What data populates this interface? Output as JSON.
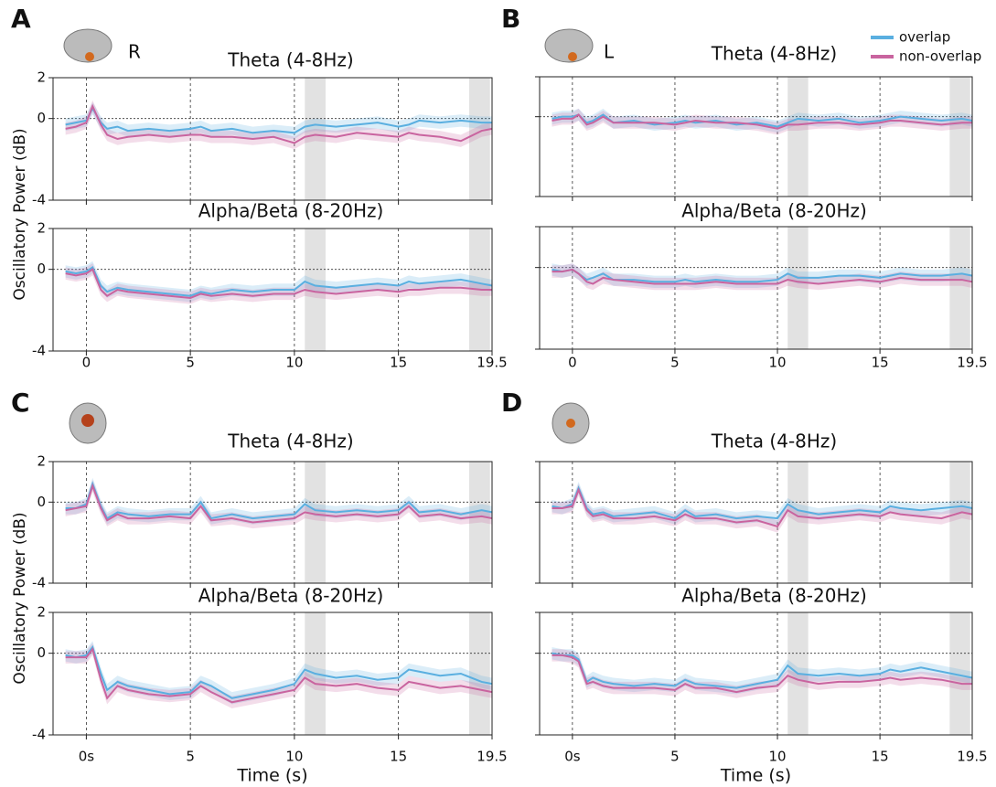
{
  "chart_data": [
    {
      "type": "line",
      "letter": "A",
      "side_label": "R",
      "ylabel": "Oscillatory Power (dB)",
      "x": [
        -1,
        -0.5,
        0,
        0.3,
        0.7,
        1,
        1.5,
        2,
        3,
        4,
        5,
        5.5,
        6,
        7,
        8,
        9,
        10,
        10.5,
        11,
        12,
        13,
        14,
        15,
        15.5,
        16,
        17,
        18,
        19,
        19.5
      ],
      "xlim": [
        -1.6,
        19.5
      ],
      "xticks": [
        0,
        5,
        10,
        15,
        19.5
      ],
      "ylim": [
        -4,
        2
      ],
      "yticks": [
        -4,
        0,
        2
      ],
      "ytick_labels": true,
      "vlines": [
        0,
        5,
        10,
        15
      ],
      "hline": 0,
      "shaded": [
        [
          10.5,
          11.5
        ],
        [
          18.4,
          19.4
        ]
      ],
      "subplots": [
        {
          "title": "Theta (4-8Hz)",
          "series": [
            {
              "error": 0.3,
              "values": [
                -0.3,
                -0.2,
                -0.1,
                0.5,
                -0.2,
                -0.5,
                -0.4,
                -0.6,
                -0.5,
                -0.6,
                -0.5,
                -0.4,
                -0.6,
                -0.5,
                -0.7,
                -0.6,
                -0.7,
                -0.4,
                -0.3,
                -0.4,
                -0.3,
                -0.2,
                -0.4,
                -0.3,
                -0.1,
                -0.2,
                -0.1,
                -0.2,
                -0.2
              ]
            },
            {
              "error": 0.3,
              "values": [
                -0.5,
                -0.4,
                -0.2,
                0.6,
                -0.3,
                -0.8,
                -1.0,
                -0.9,
                -0.8,
                -0.9,
                -0.8,
                -0.8,
                -0.9,
                -0.9,
                -1.0,
                -0.9,
                -1.2,
                -0.9,
                -0.8,
                -0.9,
                -0.7,
                -0.8,
                -0.9,
                -0.7,
                -0.8,
                -0.9,
                -1.1,
                -0.6,
                -0.5
              ]
            }
          ]
        },
        {
          "title": "Alpha/Beta (8-20Hz)",
          "series": [
            {
              "error": 0.3,
              "values": [
                -0.1,
                -0.2,
                -0.1,
                0.1,
                -0.8,
                -1.1,
                -0.9,
                -1.0,
                -1.1,
                -1.2,
                -1.3,
                -1.1,
                -1.2,
                -1.0,
                -1.1,
                -1.0,
                -1.0,
                -0.6,
                -0.8,
                -0.9,
                -0.8,
                -0.7,
                -0.8,
                -0.6,
                -0.7,
                -0.6,
                -0.5,
                -0.7,
                -0.8
              ]
            },
            {
              "error": 0.3,
              "values": [
                -0.2,
                -0.3,
                -0.2,
                0.0,
                -1.0,
                -1.3,
                -1.0,
                -1.1,
                -1.2,
                -1.3,
                -1.4,
                -1.2,
                -1.3,
                -1.2,
                -1.3,
                -1.2,
                -1.2,
                -1.0,
                -1.1,
                -1.2,
                -1.1,
                -1.0,
                -1.1,
                -1.0,
                -1.0,
                -0.9,
                -0.9,
                -1.0,
                -1.0
              ]
            }
          ]
        }
      ]
    },
    {
      "type": "line",
      "letter": "B",
      "side_label": "L",
      "legend": {
        "position": "upper right",
        "entries": [
          {
            "name": "overlap",
            "color": "#5aafe0"
          },
          {
            "name": "non-overlap",
            "color": "#c9649f"
          }
        ]
      },
      "x": [
        -1,
        -0.5,
        0,
        0.3,
        0.7,
        1,
        1.5,
        2,
        3,
        4,
        5,
        5.5,
        6,
        7,
        8,
        9,
        10,
        10.5,
        11,
        12,
        13,
        14,
        15,
        15.5,
        16,
        17,
        18,
        19,
        19.5
      ],
      "xlim": [
        -1.6,
        19.5
      ],
      "xticks": [
        0,
        5,
        10,
        15,
        19.5
      ],
      "ylim": [
        -4,
        2
      ],
      "yticks": [
        -4,
        0,
        2
      ],
      "ytick_labels": false,
      "vlines": [
        0,
        5,
        10,
        15
      ],
      "hline": 0,
      "shaded": [
        [
          10.5,
          11.5
        ],
        [
          18.4,
          19.4
        ]
      ],
      "subplots": [
        {
          "title": "Theta (4-8Hz)",
          "series": [
            {
              "error": 0.3,
              "values": [
                -0.1,
                0.0,
                0.0,
                0.1,
                -0.3,
                -0.2,
                0.1,
                -0.3,
                -0.2,
                -0.4,
                -0.3,
                -0.2,
                -0.3,
                -0.2,
                -0.4,
                -0.3,
                -0.5,
                -0.3,
                -0.1,
                -0.2,
                -0.1,
                -0.3,
                -0.2,
                -0.1,
                0.0,
                -0.1,
                -0.2,
                -0.1,
                -0.2
              ]
            },
            {
              "error": 0.3,
              "values": [
                -0.2,
                -0.1,
                -0.1,
                0.1,
                -0.4,
                -0.3,
                0.0,
                -0.3,
                -0.3,
                -0.3,
                -0.4,
                -0.3,
                -0.2,
                -0.3,
                -0.3,
                -0.4,
                -0.6,
                -0.4,
                -0.4,
                -0.3,
                -0.3,
                -0.4,
                -0.3,
                -0.2,
                -0.2,
                -0.3,
                -0.4,
                -0.3,
                -0.3
              ]
            }
          ]
        },
        {
          "title": "Alpha/Beta (8-20Hz)",
          "series": [
            {
              "error": 0.3,
              "values": [
                -0.1,
                -0.2,
                -0.1,
                -0.3,
                -0.6,
                -0.5,
                -0.3,
                -0.6,
                -0.6,
                -0.7,
                -0.7,
                -0.6,
                -0.7,
                -0.6,
                -0.7,
                -0.7,
                -0.6,
                -0.3,
                -0.5,
                -0.5,
                -0.4,
                -0.4,
                -0.5,
                -0.4,
                -0.3,
                -0.4,
                -0.4,
                -0.3,
                -0.4
              ]
            },
            {
              "error": 0.3,
              "values": [
                -0.2,
                -0.2,
                -0.1,
                -0.3,
                -0.7,
                -0.8,
                -0.5,
                -0.6,
                -0.7,
                -0.8,
                -0.8,
                -0.8,
                -0.8,
                -0.7,
                -0.8,
                -0.8,
                -0.8,
                -0.6,
                -0.7,
                -0.8,
                -0.7,
                -0.6,
                -0.7,
                -0.6,
                -0.5,
                -0.6,
                -0.6,
                -0.6,
                -0.7
              ]
            }
          ]
        }
      ]
    },
    {
      "type": "line",
      "letter": "C",
      "ylabel": "Oscillatory Power (dB)",
      "xlabel": "Time (s)",
      "x": [
        -1,
        -0.5,
        0,
        0.3,
        0.7,
        1,
        1.5,
        2,
        3,
        4,
        5,
        5.5,
        6,
        7,
        8,
        9,
        10,
        10.5,
        11,
        12,
        13,
        14,
        15,
        15.5,
        16,
        17,
        18,
        19,
        19.5
      ],
      "xlim": [
        -1.6,
        19.5
      ],
      "xticks": [
        {
          "value": 0,
          "label": "0s"
        },
        5,
        10,
        15,
        19.5
      ],
      "ylim": [
        -4,
        2
      ],
      "yticks": [
        -4,
        0,
        2
      ],
      "ytick_labels": true,
      "vlines": [
        0,
        5,
        10,
        15
      ],
      "hline": 0,
      "shaded": [
        [
          10.5,
          11.5
        ],
        [
          18.4,
          19.4
        ]
      ],
      "subplots": [
        {
          "title": "Theta (4-8Hz)",
          "series": [
            {
              "error": 0.3,
              "values": [
                -0.3,
                -0.3,
                -0.1,
                0.9,
                -0.2,
                -0.8,
                -0.5,
                -0.6,
                -0.7,
                -0.6,
                -0.6,
                0.0,
                -0.8,
                -0.6,
                -0.8,
                -0.7,
                -0.6,
                -0.1,
                -0.4,
                -0.5,
                -0.4,
                -0.5,
                -0.4,
                0.0,
                -0.5,
                -0.4,
                -0.6,
                -0.4,
                -0.5
              ]
            },
            {
              "error": 0.3,
              "values": [
                -0.4,
                -0.3,
                -0.2,
                0.8,
                -0.3,
                -0.9,
                -0.6,
                -0.8,
                -0.8,
                -0.7,
                -0.8,
                -0.2,
                -0.9,
                -0.8,
                -1.0,
                -0.9,
                -0.8,
                -0.5,
                -0.6,
                -0.7,
                -0.6,
                -0.7,
                -0.6,
                -0.2,
                -0.7,
                -0.6,
                -0.8,
                -0.7,
                -0.8
              ]
            }
          ]
        },
        {
          "title": "Alpha/Beta (8-20Hz)",
          "series": [
            {
              "error": 0.3,
              "values": [
                -0.1,
                -0.2,
                -0.1,
                0.3,
                -1.0,
                -1.8,
                -1.4,
                -1.6,
                -1.8,
                -2.0,
                -1.9,
                -1.4,
                -1.6,
                -2.2,
                -2.0,
                -1.8,
                -1.5,
                -0.8,
                -1.0,
                -1.2,
                -1.1,
                -1.3,
                -1.2,
                -0.8,
                -0.9,
                -1.1,
                -1.0,
                -1.4,
                -1.5
              ]
            },
            {
              "error": 0.3,
              "values": [
                -0.2,
                -0.2,
                -0.2,
                0.2,
                -1.3,
                -2.2,
                -1.6,
                -1.8,
                -2.0,
                -2.1,
                -2.0,
                -1.6,
                -1.9,
                -2.4,
                -2.2,
                -2.0,
                -1.8,
                -1.2,
                -1.5,
                -1.6,
                -1.5,
                -1.7,
                -1.8,
                -1.4,
                -1.5,
                -1.7,
                -1.6,
                -1.8,
                -1.9
              ]
            }
          ]
        }
      ]
    },
    {
      "type": "line",
      "letter": "D",
      "xlabel": "Time (s)",
      "x": [
        -1,
        -0.5,
        0,
        0.3,
        0.7,
        1,
        1.5,
        2,
        3,
        4,
        5,
        5.5,
        6,
        7,
        8,
        9,
        10,
        10.5,
        11,
        12,
        13,
        14,
        15,
        15.5,
        16,
        17,
        18,
        19,
        19.5
      ],
      "xlim": [
        -1.6,
        19.5
      ],
      "xticks": [
        {
          "value": 0,
          "label": "0s"
        },
        5,
        10,
        15,
        19.5
      ],
      "ylim": [
        -4,
        2
      ],
      "yticks": [
        -4,
        0,
        2
      ],
      "ytick_labels": false,
      "vlines": [
        0,
        5,
        10,
        15
      ],
      "hline": 0,
      "shaded": [
        [
          10.5,
          11.5
        ],
        [
          18.4,
          19.4
        ]
      ],
      "subplots": [
        {
          "title": "Theta (4-8Hz)",
          "series": [
            {
              "error": 0.3,
              "values": [
                -0.2,
                -0.3,
                -0.1,
                0.7,
                -0.3,
                -0.6,
                -0.5,
                -0.7,
                -0.6,
                -0.5,
                -0.8,
                -0.4,
                -0.7,
                -0.6,
                -0.8,
                -0.7,
                -0.8,
                -0.1,
                -0.4,
                -0.6,
                -0.5,
                -0.4,
                -0.5,
                -0.2,
                -0.3,
                -0.4,
                -0.3,
                -0.2,
                -0.3
              ]
            },
            {
              "error": 0.3,
              "values": [
                -0.3,
                -0.3,
                -0.2,
                0.6,
                -0.4,
                -0.7,
                -0.6,
                -0.8,
                -0.8,
                -0.7,
                -0.9,
                -0.6,
                -0.8,
                -0.8,
                -1.0,
                -0.9,
                -1.2,
                -0.4,
                -0.7,
                -0.8,
                -0.7,
                -0.6,
                -0.7,
                -0.5,
                -0.6,
                -0.7,
                -0.8,
                -0.5,
                -0.6
              ]
            }
          ]
        },
        {
          "title": "Alpha/Beta (8-20Hz)",
          "series": [
            {
              "error": 0.3,
              "values": [
                0.0,
                -0.1,
                -0.1,
                -0.3,
                -1.4,
                -1.2,
                -1.4,
                -1.5,
                -1.6,
                -1.5,
                -1.6,
                -1.3,
                -1.5,
                -1.6,
                -1.7,
                -1.5,
                -1.3,
                -0.6,
                -1.0,
                -1.1,
                -1.0,
                -1.1,
                -1.0,
                -0.8,
                -0.9,
                -0.7,
                -0.9,
                -1.1,
                -1.2
              ]
            },
            {
              "error": 0.3,
              "values": [
                -0.1,
                -0.1,
                -0.2,
                -0.4,
                -1.5,
                -1.4,
                -1.6,
                -1.7,
                -1.7,
                -1.7,
                -1.8,
                -1.5,
                -1.7,
                -1.7,
                -1.9,
                -1.7,
                -1.6,
                -1.1,
                -1.3,
                -1.5,
                -1.4,
                -1.4,
                -1.3,
                -1.2,
                -1.3,
                -1.2,
                -1.3,
                -1.5,
                -1.5
              ]
            }
          ]
        }
      ]
    }
  ]
}
